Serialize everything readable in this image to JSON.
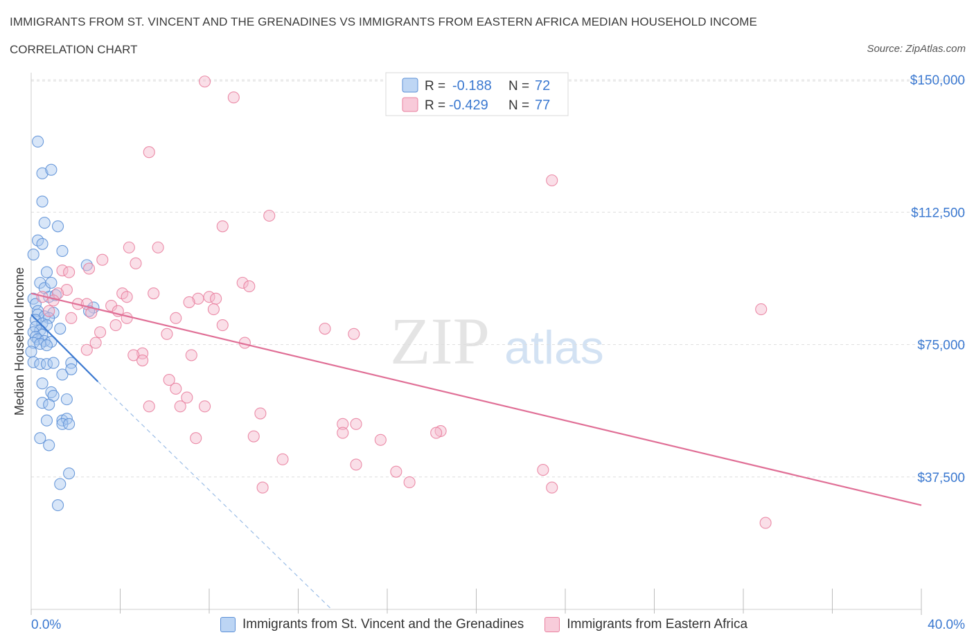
{
  "header": {
    "title": "IMMIGRANTS FROM ST. VINCENT AND THE GRENADINES VS IMMIGRANTS FROM EASTERN AFRICA MEDIAN HOUSEHOLD INCOME",
    "subtitle": "CORRELATION CHART",
    "source": "Source: ZipAtlas.com"
  },
  "watermark": {
    "zip": "ZIP",
    "atlas": "atlas"
  },
  "colors": {
    "blue_fill": "#a8c8f0",
    "blue_stroke": "#5b8fd6",
    "blue_line": "#3a78d0",
    "pink_fill": "#f5b8cc",
    "pink_stroke": "#e9809f",
    "pink_line": "#e06f96",
    "axis_label": "#3a78d0",
    "grid": "#dddddd"
  },
  "legend_top": {
    "rows": [
      {
        "r_label": "R =",
        "r_value": "-0.188",
        "n_label": "N =",
        "n_value": "72",
        "series": "blue"
      },
      {
        "r_label": "R =",
        "r_value": "-0.429",
        "n_label": "N =",
        "n_value": "77",
        "series": "pink"
      }
    ]
  },
  "legend_bottom": {
    "items": [
      {
        "label": "Immigrants from St. Vincent and the Grenadines",
        "series": "blue"
      },
      {
        "label": "Immigrants from Eastern Africa",
        "series": "pink"
      }
    ]
  },
  "chart_data": {
    "type": "scatter",
    "title": "IMMIGRANTS FROM ST. VINCENT AND THE GRENADINES VS IMMIGRANTS FROM EASTERN AFRICA MEDIAN HOUSEHOLD INCOME",
    "xlabel": "",
    "ylabel": "Median Household Income",
    "xlim": [
      0,
      40
    ],
    "ylim": [
      0,
      152000
    ],
    "x_tick_labels": [
      "0.0%",
      "40.0%"
    ],
    "y_ticks": [
      37500,
      75000,
      112500,
      150000
    ],
    "y_tick_labels": [
      "$37,500",
      "$75,000",
      "$112,500",
      "$150,000"
    ],
    "series": [
      {
        "name": "Immigrants from St. Vincent and the Grenadines",
        "color": "blue",
        "r": -0.188,
        "n": 72,
        "trend": {
          "x0": 0.0,
          "y0": 83500,
          "x1": 3.0,
          "y1": 64500
        },
        "trend_extension": {
          "x0": 3.0,
          "y0": 64500,
          "x1": 13.5,
          "y1": 0
        },
        "points": [
          [
            0.3,
            132500
          ],
          [
            0.5,
            123500
          ],
          [
            0.9,
            124500
          ],
          [
            0.5,
            115500
          ],
          [
            0.6,
            109500
          ],
          [
            1.2,
            108500
          ],
          [
            0.3,
            104500
          ],
          [
            0.5,
            103500
          ],
          [
            0.1,
            100500
          ],
          [
            1.4,
            101500
          ],
          [
            0.7,
            95500
          ],
          [
            2.5,
            97500
          ],
          [
            0.4,
            92500
          ],
          [
            0.6,
            91000
          ],
          [
            0.9,
            92500
          ],
          [
            0.8,
            88500
          ],
          [
            1.1,
            89000
          ],
          [
            0.1,
            88000
          ],
          [
            0.2,
            86500
          ],
          [
            0.3,
            84500
          ],
          [
            2.8,
            85500
          ],
          [
            2.6,
            84500
          ],
          [
            1.0,
            84000
          ],
          [
            0.3,
            83500
          ],
          [
            0.6,
            83000
          ],
          [
            0.8,
            82500
          ],
          [
            0.2,
            82000
          ],
          [
            0.5,
            81000
          ],
          [
            0.7,
            80500
          ],
          [
            0.2,
            80000
          ],
          [
            1.3,
            79500
          ],
          [
            0.4,
            79000
          ],
          [
            0.1,
            78500
          ],
          [
            0.5,
            77800
          ],
          [
            0.2,
            77200
          ],
          [
            0.3,
            76500
          ],
          [
            0.6,
            76000
          ],
          [
            0.9,
            75800
          ],
          [
            0.1,
            75500
          ],
          [
            0.4,
            75200
          ],
          [
            0.7,
            74800
          ],
          [
            0.0,
            73000
          ],
          [
            0.1,
            70000
          ],
          [
            0.4,
            69500
          ],
          [
            0.7,
            69500
          ],
          [
            1.0,
            69800
          ],
          [
            1.8,
            69800
          ],
          [
            1.4,
            66500
          ],
          [
            1.8,
            68000
          ],
          [
            0.5,
            64000
          ],
          [
            0.9,
            61500
          ],
          [
            1.0,
            60500
          ],
          [
            1.6,
            59500
          ],
          [
            0.5,
            58500
          ],
          [
            0.8,
            58000
          ],
          [
            0.7,
            53500
          ],
          [
            1.4,
            53500
          ],
          [
            1.6,
            54000
          ],
          [
            1.4,
            52500
          ],
          [
            1.7,
            52500
          ],
          [
            0.4,
            48500
          ],
          [
            0.8,
            46500
          ],
          [
            1.7,
            38500
          ],
          [
            1.3,
            35500
          ],
          [
            1.2,
            29500
          ]
        ]
      },
      {
        "name": "Immigrants from Eastern Africa",
        "color": "pink",
        "r": -0.429,
        "n": 77,
        "trend": {
          "x0": 0.0,
          "y0": 89500,
          "x1": 40.0,
          "y1": 29500
        },
        "points": [
          [
            7.8,
            149500
          ],
          [
            9.1,
            145000
          ],
          [
            5.3,
            129500
          ],
          [
            23.4,
            121500
          ],
          [
            10.7,
            111500
          ],
          [
            8.6,
            108500
          ],
          [
            4.4,
            102500
          ],
          [
            5.7,
            102500
          ],
          [
            3.2,
            99000
          ],
          [
            4.7,
            98000
          ],
          [
            1.4,
            96000
          ],
          [
            1.7,
            95500
          ],
          [
            2.6,
            96500
          ],
          [
            9.5,
            92500
          ],
          [
            9.8,
            91500
          ],
          [
            1.6,
            90500
          ],
          [
            1.2,
            89500
          ],
          [
            5.5,
            89500
          ],
          [
            4.1,
            89500
          ],
          [
            4.3,
            88500
          ],
          [
            8.0,
            88500
          ],
          [
            8.3,
            88000
          ],
          [
            7.5,
            88000
          ],
          [
            7.1,
            87000
          ],
          [
            0.5,
            88500
          ],
          [
            1.0,
            87500
          ],
          [
            2.1,
            86500
          ],
          [
            2.5,
            86500
          ],
          [
            3.6,
            86000
          ],
          [
            3.9,
            84500
          ],
          [
            2.7,
            84000
          ],
          [
            8.2,
            85000
          ],
          [
            0.8,
            84500
          ],
          [
            1.8,
            82500
          ],
          [
            4.3,
            82500
          ],
          [
            6.5,
            82500
          ],
          [
            32.8,
            85000
          ],
          [
            3.8,
            80500
          ],
          [
            8.6,
            80500
          ],
          [
            13.2,
            79500
          ],
          [
            3.1,
            78500
          ],
          [
            6.1,
            78000
          ],
          [
            14.5,
            78000
          ],
          [
            2.9,
            75500
          ],
          [
            9.6,
            75500
          ],
          [
            2.5,
            73500
          ],
          [
            5.0,
            72500
          ],
          [
            4.6,
            72000
          ],
          [
            7.2,
            72000
          ],
          [
            5.0,
            70500
          ],
          [
            6.2,
            65000
          ],
          [
            6.5,
            62500
          ],
          [
            7.0,
            60000
          ],
          [
            5.3,
            57500
          ],
          [
            6.7,
            57500
          ],
          [
            7.8,
            57500
          ],
          [
            10.3,
            55500
          ],
          [
            14.0,
            52500
          ],
          [
            14.6,
            52500
          ],
          [
            18.4,
            50500
          ],
          [
            18.2,
            50000
          ],
          [
            14.0,
            50000
          ],
          [
            7.4,
            48500
          ],
          [
            10.0,
            49000
          ],
          [
            15.7,
            48000
          ],
          [
            11.3,
            42500
          ],
          [
            14.6,
            41000
          ],
          [
            23.0,
            39500
          ],
          [
            16.4,
            39000
          ],
          [
            17.0,
            36000
          ],
          [
            10.4,
            34500
          ],
          [
            23.4,
            34500
          ],
          [
            33.0,
            24500
          ]
        ]
      }
    ]
  }
}
